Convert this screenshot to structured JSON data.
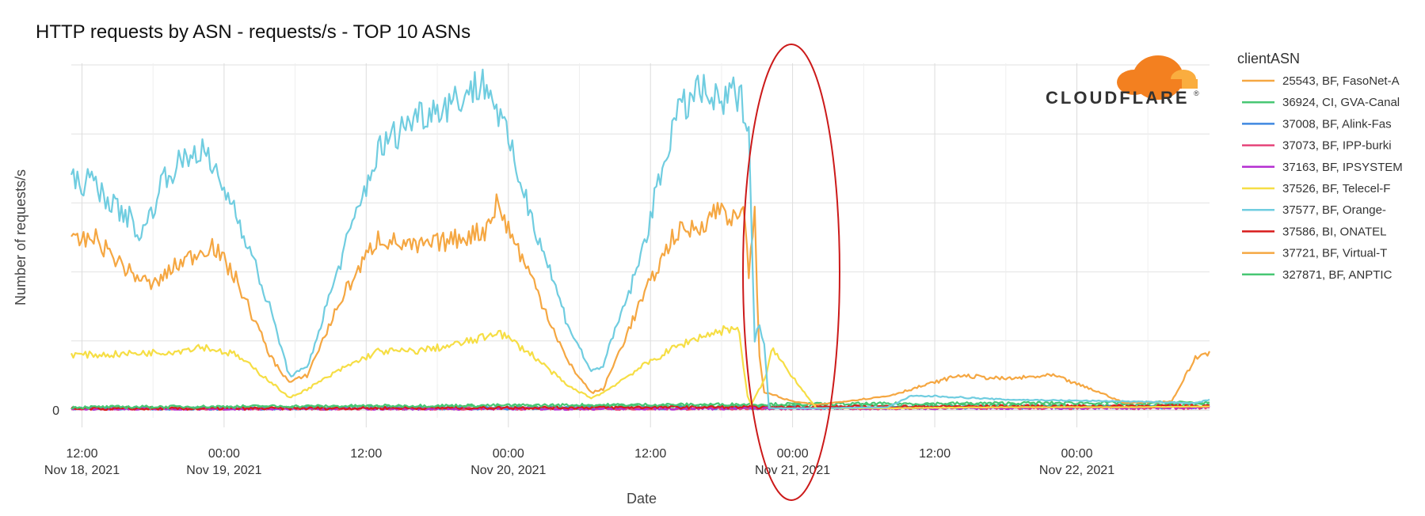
{
  "chart_data": {
    "type": "line",
    "title": "HTTP requests by ASN - requests/s - TOP 10 ASNs",
    "xlabel": "Date",
    "ylabel": "Number of requests/s",
    "y_tick_labels": [
      "0"
    ],
    "x_ticks": [
      {
        "t": 12,
        "time": "12:00",
        "date": "Nov 18, 2021"
      },
      {
        "t": 24,
        "time": "00:00",
        "date": "Nov 19, 2021"
      },
      {
        "t": 36,
        "time": "12:00",
        "date": ""
      },
      {
        "t": 48,
        "time": "00:00",
        "date": "Nov 20, 2021"
      },
      {
        "t": 60,
        "time": "12:00",
        "date": ""
      },
      {
        "t": 72,
        "time": "00:00",
        "date": "Nov 21, 2021"
      },
      {
        "t": 84,
        "time": "12:00",
        "date": ""
      },
      {
        "t": 96,
        "time": "00:00",
        "date": "Nov 22, 2021"
      }
    ],
    "x_unit": "hours since 2021-11-18 00:00",
    "xlim": [
      11.1,
      107.2
    ],
    "ylim": [
      0,
      100
    ],
    "grid": true,
    "legend_title": "clientASN",
    "legend_position": "right",
    "annotation": "red ellipse around Nov 21, 2021 00:00",
    "series": [
      {
        "name": "25543, BF, FasoNet-A",
        "color": "#f5a742",
        "x": [],
        "y": []
      },
      {
        "name": "36924, CI, GVA-Canal",
        "color": "#48c774",
        "x": [
          11.1,
          107.2
        ],
        "y": [
          0.6,
          1.5
        ]
      },
      {
        "name": "37008, BF, Alink-Fas",
        "color": "#3f88e0",
        "x": [
          11.1,
          107.2
        ],
        "y": [
          0.3,
          0.8
        ]
      },
      {
        "name": "37073, BF, IPP-burki",
        "color": "#e6457a",
        "x": [
          11.1,
          107.2
        ],
        "y": [
          0.2,
          0.6
        ]
      },
      {
        "name": "37163, BF, IPSYSTEM",
        "color": "#b52fd1",
        "x": [
          11.1,
          107.2
        ],
        "y": [
          0.2,
          0.7
        ]
      },
      {
        "name": "37526, BF, Telecel-F",
        "color": "#f6de45",
        "x": [
          11.1,
          14,
          17,
          20,
          22,
          25,
          28,
          29.5,
          31,
          34,
          37,
          40,
          43,
          46,
          47,
          50,
          53,
          55,
          56,
          59,
          62,
          64,
          66,
          67,
          67.5,
          68.2,
          68.5,
          69.8,
          70.2,
          74,
          80,
          90,
          100,
          107.2
        ],
        "y": [
          16,
          16,
          16.5,
          17,
          18.5,
          16,
          8,
          3.5,
          6,
          12,
          17,
          17,
          18.5,
          21,
          23,
          16,
          7,
          3.5,
          5,
          12,
          18,
          21,
          23,
          24,
          22,
          4,
          1.5,
          10,
          18,
          0.5,
          0.5,
          0.8,
          0.8,
          1
        ]
      },
      {
        "name": "37577, BF, Orange-",
        "color": "#70cde0",
        "x": [
          11.1,
          13,
          15,
          16,
          17,
          19,
          22,
          25,
          28,
          29.5,
          31,
          34,
          37,
          40,
          43,
          46,
          47,
          50,
          53,
          55,
          56,
          59,
          62,
          64,
          66,
          67,
          68,
          68.3,
          68.8,
          69.2,
          69.6,
          70,
          74,
          80,
          82,
          84,
          90,
          100,
          106,
          107.2
        ],
        "y": [
          66,
          66,
          58,
          56,
          50,
          68,
          76,
          58,
          28,
          10,
          12,
          45,
          75,
          85,
          89,
          95,
          88,
          56,
          25,
          11,
          13,
          42,
          84,
          93,
          88,
          92,
          88,
          82,
          20,
          25,
          20,
          0.5,
          0.5,
          0.8,
          4,
          4,
          3,
          2.5,
          2,
          3
        ]
      },
      {
        "name": "37586, BI, ONATEL",
        "color": "#d81c1c",
        "x": [
          11.1,
          107.2
        ],
        "y": [
          0.3,
          1.2
        ]
      },
      {
        "name": "37721, BF, Virtual-T",
        "color": "#f5a742",
        "x": [
          11.1,
          13,
          16,
          18,
          20,
          23,
          25,
          28,
          29.5,
          31,
          34,
          37,
          40,
          43,
          46,
          47,
          50,
          53,
          55,
          56,
          59,
          62,
          64,
          66,
          67,
          68,
          68.3,
          68.8,
          69.2,
          69.6,
          70,
          71,
          72,
          74,
          80,
          86,
          90,
          94,
          98,
          100,
          104,
          106,
          107.2
        ],
        "y": [
          48,
          50,
          40,
          36,
          42,
          48,
          38,
          15,
          8,
          10,
          33,
          50,
          47,
          49,
          52,
          60,
          38,
          14,
          5,
          6,
          30,
          51,
          53,
          59,
          55,
          56,
          40,
          56,
          15,
          5,
          5,
          3.5,
          2.5,
          1.5,
          4,
          10,
          9,
          10,
          5,
          2,
          2.5,
          15,
          17
        ]
      },
      {
        "name": "327871, BF, ANPTIC",
        "color": "#48c774",
        "x": [
          11.1,
          107.2
        ],
        "y": [
          0.8,
          2.2
        ]
      }
    ]
  },
  "logo": {
    "name": "CLOUDFLARE",
    "registered": "®"
  }
}
